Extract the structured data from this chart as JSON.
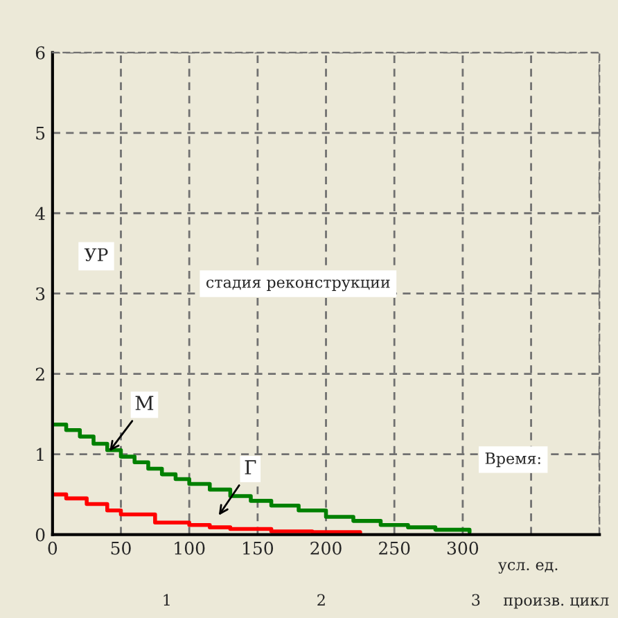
{
  "chart_data": {
    "type": "step",
    "xlabel": "усл. ед.",
    "ylabel": "УР",
    "xlim": [
      0,
      400
    ],
    "xticks": [
      0,
      50,
      100,
      150,
      200,
      250,
      300,
      {
        "value": 350,
        "label": null
      },
      {
        "value": 400,
        "label": null
      }
    ],
    "ylim": [
      0,
      6
    ],
    "yticks": [
      0,
      1,
      2,
      3,
      4,
      5,
      6
    ],
    "grid": true,
    "legend": false,
    "line_style": "solid",
    "marker": "none",
    "series": [
      {
        "name": "М",
        "color": "#008000",
        "x": [
          0,
          10,
          20,
          30,
          40,
          50,
          60,
          70,
          80,
          90,
          100,
          115,
          130,
          145,
          160,
          180,
          200,
          220,
          240,
          260,
          280,
          305
        ],
        "values": [
          1.37,
          1.3,
          1.22,
          1.13,
          1.05,
          0.97,
          0.9,
          0.82,
          0.75,
          0.69,
          0.63,
          0.56,
          0.48,
          0.42,
          0.36,
          0.3,
          0.22,
          0.17,
          0.12,
          0.09,
          0.06,
          0.03
        ]
      },
      {
        "name": "Г",
        "color": "#ff0000",
        "x": [
          0,
          10,
          25,
          40,
          50,
          75,
          100,
          115,
          130,
          160,
          190,
          225
        ],
        "values": [
          0.5,
          0.45,
          0.38,
          0.3,
          0.25,
          0.15,
          0.12,
          0.09,
          0.07,
          0.04,
          0.03,
          0.02
        ]
      }
    ],
    "annotations": [
      "стадия реконструкции",
      "Время:",
      "1",
      "2",
      "3",
      "произв. цикл"
    ]
  }
}
